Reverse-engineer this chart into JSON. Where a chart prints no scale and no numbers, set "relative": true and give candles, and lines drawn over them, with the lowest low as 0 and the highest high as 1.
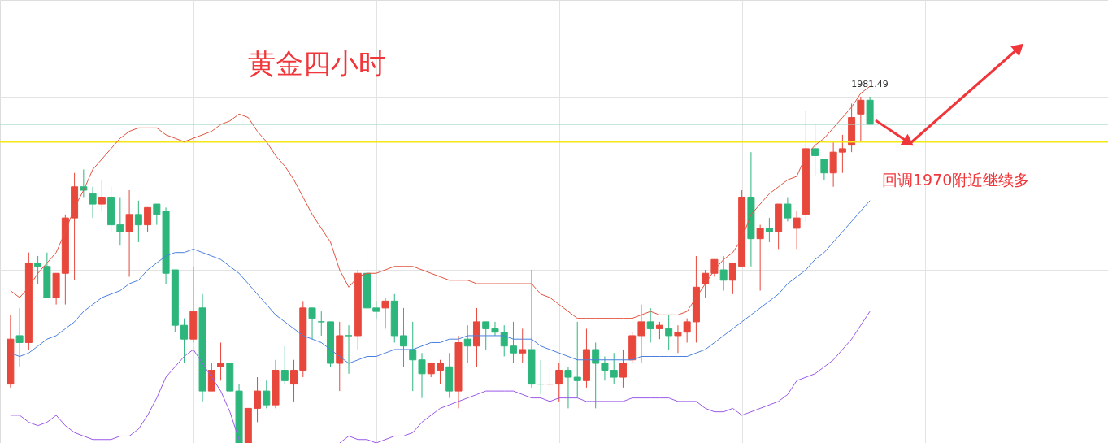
{
  "chart_data": {
    "type": "candlestick",
    "title": "黄金四小时",
    "relative": true,
    "grid": true,
    "colors": [
      "#e8473c",
      "#2db67c",
      "#e8473c",
      "#2db67c",
      "#2db67c",
      "#e8473c",
      "#e8473c",
      "#e8473c",
      "#2db67c",
      "#2db67c",
      "#e8473c",
      "#2db67c",
      "#2db67c",
      "#e8473c",
      "#2db67c",
      "#e8473c",
      "#2db67c",
      "#2db67c",
      "#2db67c",
      "#2db67c",
      "#e8473c",
      "#2db67c",
      "#e8473c",
      "#e8473c",
      "#2db67c",
      "#2db67c",
      "#e8473c",
      "#e8473c",
      "#2db67c",
      "#e8473c",
      "#2db67c",
      "#e8473c",
      "#e8473c",
      "#2db67c",
      "#2db67c",
      "#2db67c",
      "#e8473c",
      "#2db67c",
      "#e8473c",
      "#2db67c",
      "#2db67c",
      "#e8473c",
      "#2db67c",
      "#2db67c",
      "#2db67c",
      "#2db67c",
      "#e8473c",
      "#e8473c",
      "#2db67c",
      "#e8473c",
      "#2db67c",
      "#e8473c",
      "#2db67c",
      "#2db67c",
      "#2db67c",
      "#2db67c",
      "#e8473c",
      "#2db67c",
      "#2db67c",
      "#e8473c",
      "#e8473c",
      "#2db67c",
      "#2db67c",
      "#e8473c",
      "#2db67c",
      "#2db67c",
      "#2db67c",
      "#e8473c",
      "#e8473c",
      "#e8473c",
      "#2db67c",
      "#e8473c",
      "#2db67c",
      "#e8473c",
      "#e8473c",
      "#e8473c",
      "#e8473c",
      "#e8473c",
      "#2db67c",
      "#e8473c",
      "#e8473c",
      "#2db67c",
      "#e8473c",
      "#2db67c",
      "#e8473c",
      "#2db67c",
      "#e8473c",
      "#e8473c",
      "#2db67c",
      "#2db67c",
      "#e8473c",
      "#e8473c",
      "#e8473c",
      "#e8473c",
      "#2db67c"
    ],
    "categories": [
      null,
      null,
      null,
      null,
      null,
      null,
      null,
      null,
      null,
      null,
      null,
      null,
      null,
      null,
      null,
      null,
      null,
      null,
      null,
      null,
      null,
      null,
      null,
      null,
      null,
      null,
      null,
      null,
      null,
      null,
      null,
      null,
      null,
      null,
      null,
      null,
      null,
      null,
      null,
      null,
      null,
      null,
      null,
      null,
      null,
      null,
      null,
      null,
      null,
      null,
      null,
      null,
      null,
      null,
      null,
      null,
      null,
      null,
      null,
      null,
      null,
      null,
      null,
      null,
      null,
      null,
      null,
      null,
      null,
      null,
      null,
      null,
      null,
      null,
      null,
      null,
      null,
      null,
      null,
      null,
      null,
      null,
      null,
      null,
      null,
      null,
      null,
      null,
      null,
      null,
      null,
      null,
      null,
      null,
      null
    ],
    "ohlc": [
      [
        0.17,
        0.37,
        0.16,
        0.3
      ],
      [
        0.31,
        0.39,
        0.22,
        0.29
      ],
      [
        0.29,
        0.55,
        0.27,
        0.52
      ],
      [
        0.52,
        0.54,
        0.46,
        0.51
      ],
      [
        0.51,
        0.55,
        0.42,
        0.42
      ],
      [
        0.42,
        0.49,
        0.4,
        0.49
      ],
      [
        0.49,
        0.66,
        0.4,
        0.65
      ],
      [
        0.65,
        0.78,
        0.47,
        0.74
      ],
      [
        0.74,
        0.79,
        0.71,
        0.73
      ],
      [
        0.72,
        0.74,
        0.65,
        0.69
      ],
      [
        0.69,
        0.76,
        0.67,
        0.71
      ],
      [
        0.71,
        0.74,
        0.61,
        0.63
      ],
      [
        0.63,
        0.71,
        0.57,
        0.61
      ],
      [
        0.61,
        0.73,
        0.48,
        0.66
      ],
      [
        0.66,
        0.7,
        0.58,
        0.63
      ],
      [
        0.63,
        0.68,
        0.61,
        0.68
      ],
      [
        0.69,
        0.69,
        0.63,
        0.66
      ],
      [
        0.67,
        0.68,
        0.46,
        0.49
      ],
      [
        0.5,
        0.5,
        0.32,
        0.34
      ],
      [
        0.34,
        0.36,
        0.23,
        0.3
      ],
      [
        0.3,
        0.51,
        0.29,
        0.38
      ],
      [
        0.39,
        0.43,
        0.12,
        0.15
      ],
      [
        0.15,
        0.23,
        0.15,
        0.21
      ],
      [
        0.22,
        0.29,
        0.18,
        0.23
      ],
      [
        0.23,
        0.23,
        0.15,
        0.15
      ],
      [
        0.15,
        0.17,
        0,
        0
      ],
      [
        0,
        0.1,
        0,
        0.1
      ],
      [
        0.1,
        0.19,
        0.06,
        0.15
      ],
      [
        0.15,
        0.18,
        0.1,
        0.11
      ],
      [
        0.11,
        0.24,
        0.1,
        0.21
      ],
      [
        0.21,
        0.28,
        0.17,
        0.18
      ],
      [
        0.17,
        0.24,
        0.12,
        0.21
      ],
      [
        0.21,
        0.41,
        0.19,
        0.39
      ],
      [
        0.39,
        0.39,
        0.3,
        0.36
      ],
      [
        0.35,
        0.38,
        0.31,
        0.35
      ],
      [
        0.35,
        0.35,
        0.22,
        0.23
      ],
      [
        0.23,
        0.35,
        0.15,
        0.31
      ],
      [
        0.31,
        0.34,
        0.2,
        0.31
      ],
      [
        0.31,
        0.5,
        0.27,
        0.49
      ],
      [
        0.49,
        0.57,
        0.37,
        0.39
      ],
      [
        0.39,
        0.41,
        0.36,
        0.38
      ],
      [
        0.39,
        0.42,
        0.33,
        0.41
      ],
      [
        0.41,
        0.43,
        0.29,
        0.31
      ],
      [
        0.31,
        0.39,
        0.22,
        0.28
      ],
      [
        0.27,
        0.35,
        0.15,
        0.24
      ],
      [
        0.24,
        0.26,
        0.13,
        0.2
      ],
      [
        0.2,
        0.23,
        0.19,
        0.23
      ],
      [
        0.21,
        0.24,
        0.17,
        0.23
      ],
      [
        0.22,
        0.26,
        0.13,
        0.15
      ],
      [
        0.15,
        0.31,
        0.1,
        0.29
      ],
      [
        0.3,
        0.34,
        0.23,
        0.28
      ],
      [
        0.28,
        0.39,
        0.22,
        0.35
      ],
      [
        0.35,
        0.35,
        0.27,
        0.33
      ],
      [
        0.33,
        0.35,
        0.31,
        0.32
      ],
      [
        0.32,
        0.34,
        0.25,
        0.28
      ],
      [
        0.28,
        0.35,
        0.23,
        0.26
      ],
      [
        0.26,
        0.33,
        0.23,
        0.27
      ],
      [
        0.27,
        0.5,
        0.16,
        0.17
      ],
      [
        0.17,
        0.24,
        0.14,
        0.17
      ],
      [
        0.17,
        0.22,
        0.16,
        0.17
      ],
      [
        0.17,
        0.23,
        0.12,
        0.21
      ],
      [
        0.21,
        0.22,
        0.1,
        0.19
      ],
      [
        0.19,
        0.35,
        0.13,
        0.18
      ],
      [
        0.18,
        0.33,
        0.16,
        0.27
      ],
      [
        0.27,
        0.29,
        0.1,
        0.23
      ],
      [
        0.23,
        0.25,
        0.18,
        0.21
      ],
      [
        0.21,
        0.26,
        0.17,
        0.19
      ],
      [
        0.19,
        0.27,
        0.16,
        0.23
      ],
      [
        0.24,
        0.32,
        0.23,
        0.31
      ],
      [
        0.31,
        0.4,
        0.23,
        0.35
      ],
      [
        0.35,
        0.39,
        0.29,
        0.33
      ],
      [
        0.33,
        0.35,
        0.3,
        0.34
      ],
      [
        0.33,
        0.37,
        0.27,
        0.31
      ],
      [
        0.31,
        0.34,
        0.26,
        0.32
      ],
      [
        0.32,
        0.36,
        0.29,
        0.35
      ],
      [
        0.35,
        0.54,
        0.29,
        0.45
      ],
      [
        0.46,
        0.5,
        0.42,
        0.49
      ],
      [
        0.49,
        0.53,
        0.48,
        0.53
      ],
      [
        0.5,
        0.54,
        0.44,
        0.47
      ],
      [
        0.47,
        0.52,
        0.43,
        0.52
      ],
      [
        0.51,
        0.73,
        0.51,
        0.71
      ],
      [
        0.71,
        0.84,
        0.51,
        0.59
      ],
      [
        0.59,
        0.63,
        0.44,
        0.62
      ],
      [
        0.62,
        0.65,
        0.58,
        0.61
      ],
      [
        0.61,
        0.69,
        0.56,
        0.69
      ],
      [
        0.69,
        0.71,
        0.64,
        0.65
      ],
      [
        0.62,
        0.67,
        0.56,
        0.65
      ],
      [
        0.66,
        0.96,
        0.64,
        0.85
      ],
      [
        0.85,
        0.92,
        0.77,
        0.83
      ],
      [
        0.82,
        0.82,
        0.76,
        0.78
      ],
      [
        0.78,
        0.87,
        0.74,
        0.84
      ],
      [
        0.84,
        0.89,
        0.78,
        0.85
      ],
      [
        0.86,
        0.98,
        0.84,
        0.94
      ],
      [
        0.95,
        1,
        0.87,
        0.99
      ],
      [
        0.99,
        1,
        0.92,
        0.92
      ]
    ],
    "series": [
      {
        "type": "line",
        "color": "#e2533f",
        "values": [
          0.44,
          0.42,
          0.45,
          0.49,
          0.52,
          0.55,
          0.61,
          0.68,
          0.73,
          0.79,
          0.82,
          0.85,
          0.88,
          0.9,
          0.91,
          0.91,
          0.91,
          0.89,
          0.88,
          0.87,
          0.88,
          0.89,
          0.9,
          0.92,
          0.93,
          0.95,
          0.94,
          0.9,
          0.87,
          0.83,
          0.8,
          0.76,
          0.71,
          0.66,
          0.62,
          0.58,
          0.5,
          0.45,
          0.48,
          0.49,
          0.49,
          0.5,
          0.51,
          0.51,
          0.51,
          0.5,
          0.49,
          0.48,
          0.47,
          0.47,
          0.47,
          0.46,
          0.46,
          0.46,
          0.46,
          0.46,
          0.46,
          0.46,
          0.43,
          0.42,
          0.4,
          0.38,
          0.36,
          0.36,
          0.36,
          0.36,
          0.36,
          0.36,
          0.36,
          0.37,
          0.38,
          0.37,
          0.37,
          0.37,
          0.38,
          0.42,
          0.46,
          0.5,
          0.53,
          0.55,
          0.59,
          0.66,
          0.69,
          0.72,
          0.74,
          0.76,
          0.77,
          0.83,
          0.86,
          0.88,
          0.91,
          0.94,
          0.97,
          1.01,
          1.03
        ]
      },
      {
        "type": "line",
        "color": "#4a7fe0",
        "values": [
          0.26,
          0.25,
          0.26,
          0.28,
          0.3,
          0.31,
          0.33,
          0.35,
          0.38,
          0.4,
          0.42,
          0.43,
          0.44,
          0.46,
          0.47,
          0.5,
          0.52,
          0.54,
          0.55,
          0.55,
          0.56,
          0.55,
          0.54,
          0.53,
          0.51,
          0.49,
          0.46,
          0.43,
          0.4,
          0.37,
          0.35,
          0.33,
          0.31,
          0.3,
          0.29,
          0.27,
          0.25,
          0.23,
          0.24,
          0.25,
          0.25,
          0.26,
          0.27,
          0.27,
          0.27,
          0.28,
          0.29,
          0.29,
          0.3,
          0.3,
          0.31,
          0.31,
          0.31,
          0.31,
          0.31,
          0.3,
          0.3,
          0.3,
          0.28,
          0.27,
          0.26,
          0.25,
          0.24,
          0.24,
          0.24,
          0.24,
          0.24,
          0.24,
          0.24,
          0.25,
          0.25,
          0.25,
          0.25,
          0.25,
          0.25,
          0.26,
          0.27,
          0.29,
          0.31,
          0.33,
          0.35,
          0.37,
          0.39,
          0.41,
          0.43,
          0.46,
          0.48,
          0.5,
          0.53,
          0.55,
          0.58,
          0.61,
          0.64,
          0.67,
          0.7
        ]
      },
      {
        "type": "line",
        "color": "#9b59e8",
        "values": [
          0.08,
          0.08,
          0.06,
          0.05,
          0.06,
          0.08,
          0.05,
          0.03,
          0.02,
          0.01,
          0.01,
          0.01,
          0.02,
          0.02,
          0.04,
          0.08,
          0.13,
          0.19,
          0.22,
          0.25,
          0.27,
          0.23,
          0.19,
          0.15,
          0.09,
          0.01,
          null,
          null,
          null,
          null,
          null,
          null,
          null,
          null,
          null,
          null,
          0,
          0.02,
          0.01,
          0.01,
          0,
          0.01,
          0.02,
          0.02,
          0.03,
          0.06,
          0.08,
          0.1,
          0.11,
          0.12,
          0.13,
          0.14,
          0.15,
          0.15,
          0.15,
          0.15,
          0.14,
          0.13,
          0.13,
          0.12,
          0.13,
          0.13,
          0.13,
          0.12,
          0.12,
          0.12,
          0.12,
          0.12,
          0.13,
          0.13,
          0.13,
          0.13,
          0.13,
          0.12,
          0.12,
          0.12,
          0.1,
          0.09,
          0.09,
          0.1,
          0.08,
          0.09,
          0.1,
          0.11,
          0.12,
          0.14,
          0.18,
          0.19,
          0.2,
          0.22,
          0.24,
          0.27,
          0.3,
          0.34,
          0.38
        ]
      }
    ],
    "ref_lines": [
      {
        "axis": "y",
        "value": 0.87,
        "color": "#f5e61a"
      },
      {
        "axis": "y",
        "value": 0.92,
        "color": "#9fd4c4"
      }
    ],
    "annotations": [
      "回调1970附近继续多",
      {
        "text": "1981.49",
        "y": 1
      }
    ]
  }
}
